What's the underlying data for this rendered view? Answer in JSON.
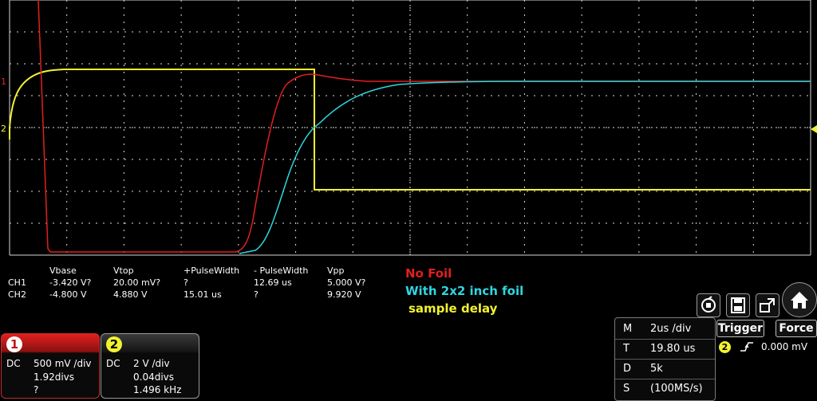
{
  "colors": {
    "ch1": "#e0201e",
    "ch2": "#2fd6e0",
    "trig_sample": "#f2f230",
    "grid": "#d8d8d8"
  },
  "waveforms": [
    "red_ch1",
    "cyan_ch2",
    "yellow_sample_delay"
  ],
  "markers": {
    "ch1_level": "1",
    "ch2_level": "2"
  },
  "measurements": {
    "headers": [
      "",
      "Vbase",
      "Vtop",
      "+PulseWidth",
      "- PulseWidth",
      "Vpp"
    ],
    "rows": [
      [
        "CH1",
        "-3.420 V?",
        "20.00 mV?",
        "?",
        "12.69 us",
        "5.000 V?"
      ],
      [
        "CH2",
        "-4.800 V",
        "4.880 V",
        "15.01 us",
        "?",
        "9.920 V"
      ]
    ]
  },
  "annotations": {
    "no_foil": "No Foil",
    "with_foil": "With 2x2 inch foil",
    "sample_delay": "sample delay"
  },
  "channel1": {
    "number": "1",
    "coupling": "DC",
    "scale": "500 mV /div",
    "offset": "1.92divs",
    "freq": "?"
  },
  "channel2": {
    "number": "2",
    "coupling": "DC",
    "scale": "2 V /div",
    "offset": "0.04divs",
    "freq": "1.496 kHz"
  },
  "timebase": {
    "rows": [
      {
        "key": "M",
        "value": "2us /div"
      },
      {
        "key": "T",
        "value": "19.80 us"
      },
      {
        "key": "D",
        "value": "5k"
      },
      {
        "key": "S",
        "value": "(100MS/s)"
      }
    ]
  },
  "trigger": {
    "label": "Trigger",
    "force_label": "Force",
    "source": "2",
    "level": "0.000 mV"
  },
  "icons": [
    "autoset-icon",
    "save-icon",
    "display-icon",
    "home-icon"
  ]
}
